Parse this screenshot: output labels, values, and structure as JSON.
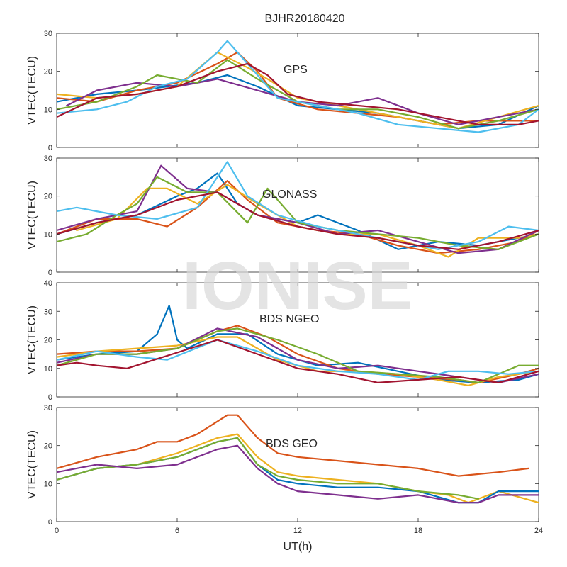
{
  "title": "BJHR20180420",
  "watermark": "IONISE",
  "xlabel": "UT(h)",
  "chart_data": [
    {
      "type": "line",
      "label": "GPS",
      "ylabel": "VTEC(TECU)",
      "xlim": [
        0,
        24
      ],
      "ylim": [
        0,
        30
      ],
      "xticks": [
        0,
        6,
        12,
        18,
        24
      ],
      "yticks": [
        0,
        10,
        20,
        30
      ],
      "series": [
        {
          "color": "#0072BD",
          "x": [
            0,
            2,
            4,
            5.5,
            7,
            8.5,
            10,
            12,
            14,
            16,
            18,
            20,
            22,
            24
          ],
          "y": [
            12,
            14,
            15,
            16,
            17,
            19,
            16,
            11,
            10,
            9,
            7,
            5,
            6,
            11
          ]
        },
        {
          "color": "#D95319",
          "x": [
            0,
            2,
            4,
            6,
            8,
            9,
            10,
            11,
            13,
            15,
            17,
            19,
            21,
            24
          ],
          "y": [
            13,
            12,
            15,
            17,
            22,
            25,
            20,
            13,
            10,
            9,
            8,
            6,
            7,
            7
          ]
        },
        {
          "color": "#EDB120",
          "x": [
            0,
            2,
            4,
            6,
            8,
            9.5,
            10.5,
            12,
            14,
            16,
            18,
            20,
            22,
            24
          ],
          "y": [
            14,
            13,
            14,
            16,
            25,
            21,
            18,
            13,
            11,
            9,
            7,
            5,
            8,
            11
          ]
        },
        {
          "color": "#7E2F8E",
          "x": [
            0.5,
            2,
            4,
            6,
            8,
            10,
            12,
            14,
            16,
            18,
            20,
            22,
            24
          ],
          "y": [
            11,
            15,
            17,
            16,
            18,
            15,
            12,
            11,
            13,
            9,
            6,
            8,
            10
          ]
        },
        {
          "color": "#77AC30",
          "x": [
            0,
            2,
            4,
            5,
            7,
            8.5,
            10,
            12,
            14,
            16,
            18,
            20,
            22,
            24
          ],
          "y": [
            10,
            12,
            16,
            19,
            17,
            23,
            18,
            12,
            10,
            10,
            8,
            5,
            7,
            10
          ]
        },
        {
          "color": "#4DBEEE",
          "x": [
            0,
            2,
            3.5,
            5,
            6.5,
            8,
            8.5,
            9.5,
            11,
            13,
            15,
            17,
            19,
            21,
            23,
            24
          ],
          "y": [
            9,
            10,
            12,
            16,
            18,
            25,
            28,
            22,
            13,
            11,
            9,
            6,
            5,
            4,
            6,
            10
          ]
        },
        {
          "color": "#A2142F",
          "x": [
            0,
            2,
            4,
            6,
            8,
            9.5,
            10.5,
            11.5,
            13,
            15,
            17,
            19,
            21,
            23,
            24
          ],
          "y": [
            8,
            13,
            14,
            16,
            20,
            22,
            19,
            14,
            12,
            11,
            10,
            8,
            6,
            6,
            7
          ]
        }
      ]
    },
    {
      "type": "line",
      "label": "GLONASS",
      "ylabel": "VTEC(TECU)",
      "xlim": [
        0,
        24
      ],
      "ylim": [
        0,
        30
      ],
      "xticks": [
        0,
        6,
        12,
        18,
        24
      ],
      "yticks": [
        0,
        10,
        20,
        30
      ],
      "series": [
        {
          "color": "#0072BD",
          "x": [
            0,
            2,
            4,
            6,
            7,
            8,
            9,
            10,
            12,
            13,
            15,
            17,
            19,
            21,
            24
          ],
          "y": [
            10,
            13,
            15,
            20,
            22,
            26,
            18,
            15,
            13,
            15,
            11,
            6,
            8,
            7,
            10
          ]
        },
        {
          "color": "#D95319",
          "x": [
            0,
            2,
            4,
            5.5,
            7,
            8.5,
            9.5,
            11,
            13,
            15,
            17,
            19,
            21,
            23,
            24
          ],
          "y": [
            10,
            14,
            14,
            12,
            17,
            24,
            19,
            13,
            11,
            10,
            7,
            5,
            6,
            8,
            11
          ]
        },
        {
          "color": "#EDB120",
          "x": [
            1,
            3,
            4.5,
            5.5,
            7,
            8.5,
            10,
            12,
            14,
            16,
            18,
            19.5,
            21,
            23,
            24
          ],
          "y": [
            11,
            14,
            22,
            22,
            18,
            23,
            18,
            12,
            10,
            10,
            7,
            4,
            9,
            9,
            10
          ]
        },
        {
          "color": "#7E2F8E",
          "x": [
            0,
            2,
            4,
            5.2,
            6.5,
            8,
            10,
            12,
            14,
            16,
            18,
            20,
            22,
            24
          ],
          "y": [
            11,
            14,
            16,
            28,
            22,
            21,
            15,
            13,
            10,
            11,
            8,
            5,
            6,
            11
          ]
        },
        {
          "color": "#77AC30",
          "x": [
            0,
            1.5,
            3,
            4,
            5,
            6.5,
            8,
            9.5,
            10.5,
            12,
            14,
            16,
            18,
            20,
            22,
            24
          ],
          "y": [
            8,
            10,
            15,
            18,
            25,
            21,
            21,
            13,
            22,
            13,
            11,
            10,
            9,
            7,
            6,
            10
          ]
        },
        {
          "color": "#4DBEEE",
          "x": [
            0,
            1,
            3,
            5,
            7,
            8.5,
            9.5,
            11,
            13,
            15,
            17,
            19,
            21,
            22.5,
            24
          ],
          "y": [
            16,
            17,
            15,
            14,
            17,
            29,
            20,
            15,
            12,
            10,
            8,
            6,
            8,
            12,
            11
          ]
        },
        {
          "color": "#A2142F",
          "x": [
            0,
            2,
            4,
            6,
            8,
            10,
            12,
            14,
            16,
            18,
            20,
            22,
            24
          ],
          "y": [
            10,
            13,
            15,
            19,
            21,
            15,
            12,
            10,
            9,
            7,
            6,
            8,
            11
          ]
        }
      ]
    },
    {
      "type": "line",
      "label": "BDS NGEO",
      "ylabel": "VTEC(TECU)",
      "xlim": [
        0,
        24
      ],
      "ylim": [
        0,
        40
      ],
      "xticks": [
        0,
        6,
        12,
        18,
        24
      ],
      "yticks": [
        0,
        10,
        20,
        30,
        40
      ],
      "series": [
        {
          "color": "#0072BD",
          "x": [
            0,
            2,
            4,
            5,
            5.6,
            6,
            6.5,
            8,
            9.5,
            11,
            13,
            15,
            17,
            19,
            21,
            23,
            24
          ],
          "y": [
            13,
            15,
            16,
            22,
            32,
            20,
            17,
            22,
            22,
            15,
            11,
            12,
            9,
            6,
            5,
            6,
            8
          ]
        },
        {
          "color": "#D95319",
          "x": [
            0,
            2,
            4,
            6,
            8,
            9,
            10.5,
            12,
            14,
            16,
            18,
            20,
            21,
            23,
            24
          ],
          "y": [
            15,
            16,
            16,
            17,
            23,
            25,
            21,
            15,
            10,
            8,
            7,
            6,
            5,
            8,
            10
          ]
        },
        {
          "color": "#EDB120",
          "x": [
            0,
            2,
            4,
            6,
            8,
            9,
            11,
            13,
            15,
            17,
            19,
            20.5,
            22,
            24
          ],
          "y": [
            14,
            16,
            17,
            18,
            21,
            21,
            13,
            9,
            9,
            8,
            6,
            4,
            7,
            9
          ]
        },
        {
          "color": "#7E2F8E",
          "x": [
            0,
            2,
            4,
            6,
            8,
            10,
            12,
            14,
            16,
            18,
            20,
            22,
            24
          ],
          "y": [
            12,
            15,
            15,
            17,
            24,
            21,
            13,
            10,
            11,
            9,
            7,
            5,
            8
          ]
        },
        {
          "color": "#77AC30",
          "x": [
            0,
            2,
            4,
            6,
            8,
            9,
            11,
            13,
            15,
            17,
            19,
            21,
            23,
            24
          ],
          "y": [
            11,
            15,
            15,
            17,
            23,
            24,
            20,
            15,
            9,
            8,
            7,
            5,
            11,
            11
          ]
        },
        {
          "color": "#4DBEEE",
          "x": [
            0,
            2,
            4,
            5.5,
            8,
            10,
            12,
            14,
            16,
            18,
            19.5,
            21,
            22.5,
            24
          ],
          "y": [
            13,
            16,
            14,
            13,
            20,
            16,
            11,
            9,
            8,
            6,
            9,
            9,
            8,
            9
          ]
        },
        {
          "color": "#A2142F",
          "x": [
            0,
            1,
            2,
            3.5,
            8,
            10,
            12,
            14,
            16,
            18,
            20,
            22,
            24
          ],
          "y": [
            11,
            12,
            11,
            10,
            20,
            15,
            10,
            8,
            5,
            6,
            7,
            5,
            9
          ]
        }
      ]
    },
    {
      "type": "line",
      "label": "BDS GEO",
      "ylabel": "VTEC(TECU)",
      "xlim": [
        0,
        24
      ],
      "ylim": [
        0,
        30
      ],
      "xticks": [
        0,
        6,
        12,
        18,
        24
      ],
      "yticks": [
        0,
        10,
        20,
        30
      ],
      "series": [
        {
          "color": "#D95319",
          "x": [
            0,
            2,
            4,
            5,
            6,
            7,
            8.5,
            9,
            10,
            11,
            12,
            14,
            16,
            18,
            20,
            22,
            23.5
          ],
          "y": [
            14,
            17,
            19,
            21,
            21,
            23,
            28,
            28,
            22,
            18,
            17,
            16,
            15,
            14,
            12,
            13,
            14
          ]
        },
        {
          "color": "#EDB120",
          "x": [
            0,
            2,
            4,
            6,
            8,
            9,
            10,
            11,
            12,
            14,
            16,
            18,
            19.5,
            20.5,
            22,
            24
          ],
          "y": [
            11,
            14,
            15,
            18,
            22,
            23,
            17,
            13,
            12,
            11,
            10,
            8,
            7,
            5,
            8,
            5
          ]
        },
        {
          "color": "#0072BD",
          "x": [
            0,
            2,
            4,
            6,
            8,
            9,
            10,
            11,
            12,
            14,
            16,
            18,
            20,
            21,
            22,
            24
          ],
          "y": [
            11,
            14,
            15,
            17,
            21,
            22,
            15,
            11,
            10,
            9,
            9,
            8,
            5,
            5,
            8,
            8
          ]
        },
        {
          "color": "#77AC30",
          "x": [
            0,
            2,
            4,
            6,
            8,
            9,
            10,
            11,
            12,
            14,
            16,
            18,
            20,
            21
          ],
          "y": [
            11,
            14,
            15,
            17,
            21,
            22,
            15,
            12,
            11,
            10,
            10,
            8,
            7,
            6
          ]
        },
        {
          "color": "#7E2F8E",
          "x": [
            0,
            2,
            4,
            6,
            8,
            9,
            10,
            11,
            12,
            14,
            16,
            18,
            20,
            21,
            22,
            24
          ],
          "y": [
            13,
            15,
            14,
            15,
            19,
            20,
            14,
            10,
            8,
            7,
            6,
            7,
            5,
            5,
            7,
            7
          ]
        }
      ]
    }
  ]
}
